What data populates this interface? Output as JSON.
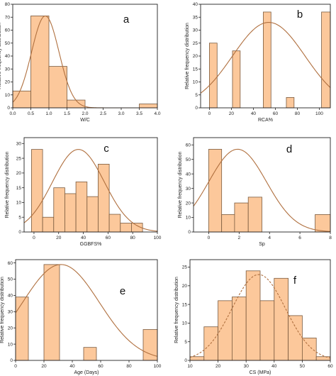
{
  "chart_data": [
    {
      "type": "bar",
      "panel_label": "a",
      "xlabel": "W/C",
      "ylabel": "Relative frequency distribution",
      "xlim": [
        0,
        4.0
      ],
      "ylim": [
        0,
        80
      ],
      "xticks": [
        "0.0",
        "0.5",
        "1.0",
        "1.5",
        "2.0",
        "2.5",
        "3.0",
        "3.5",
        "4.0"
      ],
      "xtick_values": [
        0,
        0.5,
        1.0,
        1.5,
        2.0,
        2.5,
        3.0,
        3.5,
        4.0
      ],
      "yticks": [
        "0",
        "10",
        "20",
        "30",
        "40",
        "50",
        "60",
        "70",
        "80"
      ],
      "ytick_values": [
        0,
        10,
        20,
        30,
        40,
        50,
        60,
        70,
        80
      ],
      "bins": [
        {
          "start": 0.0,
          "end": 0.5,
          "value": 13
        },
        {
          "start": 0.5,
          "end": 1.0,
          "value": 71
        },
        {
          "start": 1.0,
          "end": 1.5,
          "value": 32
        },
        {
          "start": 1.5,
          "end": 2.0,
          "value": 6
        },
        {
          "start": 3.5,
          "end": 4.0,
          "value": 3
        }
      ],
      "fit_curve": {
        "type": "normal",
        "mean": 0.9,
        "sd": 0.38,
        "peak": 71
      }
    },
    {
      "type": "bar",
      "panel_label": "b",
      "xlabel": "RCA%",
      "ylabel": "Relative frequency distribution",
      "xlim": [
        -8,
        110
      ],
      "ylim": [
        0,
        40
      ],
      "xticks": [
        "0",
        "20",
        "40",
        "60",
        "80",
        "100"
      ],
      "xtick_values": [
        0,
        20,
        40,
        60,
        80,
        100
      ],
      "yticks": [
        "0",
        "5",
        "10",
        "15",
        "20",
        "25",
        "30",
        "35",
        "40"
      ],
      "ytick_values": [
        0,
        5,
        10,
        15,
        20,
        25,
        30,
        35,
        40
      ],
      "bins": [
        {
          "start": 0,
          "end": 7,
          "value": 25
        },
        {
          "start": 21,
          "end": 28,
          "value": 22
        },
        {
          "start": 49,
          "end": 56,
          "value": 37
        },
        {
          "start": 70,
          "end": 77,
          "value": 4
        },
        {
          "start": 102,
          "end": 110,
          "value": 37
        }
      ],
      "fit_curve": {
        "type": "normal",
        "mean": 54,
        "sd": 33,
        "peak": 33
      }
    },
    {
      "type": "bar",
      "panel_label": "c",
      "xlabel": "GGBFS%",
      "ylabel": "Relative frequency distribution",
      "xlim": [
        -8,
        100
      ],
      "ylim": [
        0,
        32
      ],
      "xticks": [
        "0",
        "20",
        "40",
        "60",
        "80",
        "100"
      ],
      "xtick_values": [
        0,
        20,
        40,
        60,
        80,
        100
      ],
      "yticks": [
        "0",
        "5",
        "10",
        "15",
        "20",
        "25",
        "30"
      ],
      "ytick_values": [
        0,
        5,
        10,
        15,
        20,
        25,
        30
      ],
      "bins": [
        {
          "start": -2,
          "end": 7,
          "value": 28
        },
        {
          "start": 7,
          "end": 16,
          "value": 5
        },
        {
          "start": 16,
          "end": 25,
          "value": 15
        },
        {
          "start": 25,
          "end": 34,
          "value": 13
        },
        {
          "start": 34,
          "end": 43,
          "value": 17
        },
        {
          "start": 43,
          "end": 52,
          "value": 12
        },
        {
          "start": 52,
          "end": 61,
          "value": 23
        },
        {
          "start": 61,
          "end": 70,
          "value": 6
        },
        {
          "start": 70,
          "end": 79,
          "value": 3
        },
        {
          "start": 79,
          "end": 88,
          "value": 3
        }
      ],
      "fit_curve": {
        "type": "normal",
        "mean": 36,
        "sd": 21,
        "peak": 28
      }
    },
    {
      "type": "bar",
      "panel_label": "d",
      "xlabel": "Sp",
      "ylabel": "Relative frequency distribution",
      "xlim": [
        -1,
        8
      ],
      "ylim": [
        0,
        65
      ],
      "xticks": [
        "0",
        "2",
        "4",
        "6",
        "8"
      ],
      "xtick_values": [
        0,
        2,
        4,
        6,
        8
      ],
      "yticks": [
        "0",
        "10",
        "20",
        "30",
        "40",
        "50",
        "60"
      ],
      "ytick_values": [
        0,
        10,
        20,
        30,
        40,
        50,
        60
      ],
      "bins": [
        {
          "start": 0,
          "end": 0.85,
          "value": 57
        },
        {
          "start": 0.85,
          "end": 1.7,
          "value": 12
        },
        {
          "start": 1.7,
          "end": 2.6,
          "value": 20
        },
        {
          "start": 2.6,
          "end": 3.5,
          "value": 24
        },
        {
          "start": 7.0,
          "end": 8.0,
          "value": 12
        }
      ],
      "fit_curve": {
        "type": "normal",
        "mean": 1.9,
        "sd": 1.9,
        "peak": 57
      }
    },
    {
      "type": "bar",
      "panel_label": "e",
      "xlabel": "Age (Days)",
      "ylabel": "Relative frequency distribution",
      "xlim": [
        0,
        100
      ],
      "ylim": [
        0,
        62
      ],
      "xticks": [
        "0",
        "20",
        "40",
        "60",
        "80",
        "100"
      ],
      "xtick_values": [
        0,
        20,
        40,
        60,
        80,
        100
      ],
      "yticks": [
        "0",
        "10",
        "20",
        "30",
        "40",
        "50",
        "60"
      ],
      "ytick_values": [
        0,
        10,
        20,
        30,
        40,
        50,
        60
      ],
      "bins": [
        {
          "start": 0,
          "end": 9,
          "value": 39
        },
        {
          "start": 20,
          "end": 31,
          "value": 59
        },
        {
          "start": 48,
          "end": 57,
          "value": 8
        },
        {
          "start": 90,
          "end": 100,
          "value": 19
        }
      ],
      "fit_curve": {
        "type": "normal",
        "mean": 32,
        "sd": 27,
        "peak": 59
      }
    },
    {
      "type": "bar",
      "panel_label": "f",
      "xlabel": "CS (MPa)",
      "ylabel": "Relative frequency distribution",
      "xlim": [
        10,
        60
      ],
      "ylim": [
        0,
        27
      ],
      "xticks": [
        "10",
        "20",
        "30",
        "40",
        "50",
        "60"
      ],
      "xtick_values": [
        10,
        20,
        30,
        40,
        50,
        60
      ],
      "yticks": [
        "0",
        "5",
        "10",
        "15",
        "20",
        "25"
      ],
      "ytick_values": [
        0,
        5,
        10,
        15,
        20,
        25
      ],
      "bins": [
        {
          "start": 10,
          "end": 15,
          "value": 1
        },
        {
          "start": 15,
          "end": 20,
          "value": 9
        },
        {
          "start": 20,
          "end": 25,
          "value": 16
        },
        {
          "start": 25,
          "end": 30,
          "value": 17
        },
        {
          "start": 30,
          "end": 35,
          "value": 24
        },
        {
          "start": 35,
          "end": 40,
          "value": 16
        },
        {
          "start": 40,
          "end": 45,
          "value": 22
        },
        {
          "start": 45,
          "end": 50,
          "value": 12
        },
        {
          "start": 50,
          "end": 55,
          "value": 6
        },
        {
          "start": 55,
          "end": 60,
          "value": 1
        }
      ],
      "fit_curve": {
        "type": "normal",
        "mean": 34.5,
        "sd": 9.5,
        "peak": 23,
        "dashed": true
      }
    }
  ],
  "colors": {
    "bar_fill": "#fcc89b",
    "bar_stroke": "#7a5a3e",
    "curve": "#b0703f",
    "axis": "#222222"
  }
}
